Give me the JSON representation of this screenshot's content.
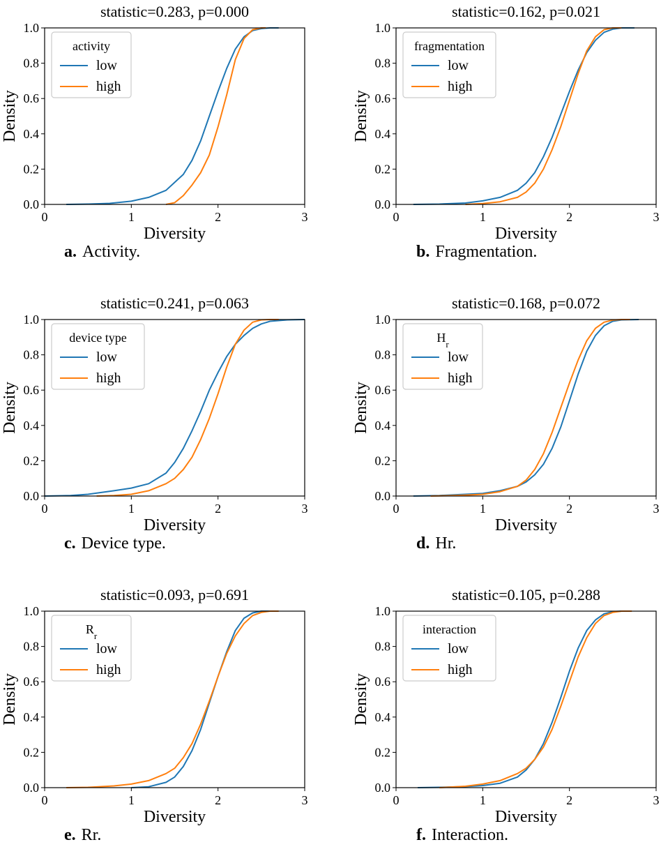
{
  "figure": {
    "colors": {
      "low": "#1f77b4",
      "high": "#ff7f0e",
      "axis": "#000000",
      "legend_border": "#cccccc"
    }
  },
  "chart_data": [
    {
      "type": "line",
      "title": "statistic=0.283, p=0.000",
      "xlabel": "Diversity",
      "ylabel": "Density",
      "xlim": [
        0,
        3
      ],
      "ylim": [
        0,
        1.0
      ],
      "xticks": [
        "0",
        "1",
        "2",
        "3"
      ],
      "yticks": [
        "0.0",
        "0.2",
        "0.4",
        "0.6",
        "0.8",
        "1.0"
      ],
      "legend": {
        "title": "activity",
        "title_sub": "",
        "placement": "upper-left"
      },
      "caption": {
        "letter": "a.",
        "text": "Activity."
      },
      "series": [
        {
          "name": "low",
          "color": "#1f77b4",
          "x": [
            0.25,
            0.5,
            0.75,
            1.0,
            1.2,
            1.4,
            1.6,
            1.7,
            1.8,
            1.9,
            2.0,
            2.1,
            2.2,
            2.3,
            2.4,
            2.5,
            2.6,
            2.7
          ],
          "y": [
            0.0,
            0.002,
            0.006,
            0.018,
            0.04,
            0.08,
            0.17,
            0.25,
            0.36,
            0.5,
            0.64,
            0.77,
            0.88,
            0.95,
            0.985,
            0.996,
            1.0,
            1.0
          ]
        },
        {
          "name": "high",
          "color": "#ff7f0e",
          "x": [
            1.4,
            1.5,
            1.6,
            1.7,
            1.8,
            1.9,
            2.0,
            2.1,
            2.2,
            2.3,
            2.4,
            2.5,
            2.55
          ],
          "y": [
            0.0,
            0.01,
            0.05,
            0.11,
            0.18,
            0.28,
            0.44,
            0.62,
            0.82,
            0.94,
            0.99,
            1.0,
            1.0
          ]
        }
      ]
    },
    {
      "type": "line",
      "title": "statistic=0.162, p=0.021",
      "xlabel": "Diversity",
      "ylabel": "Density",
      "xlim": [
        0,
        3
      ],
      "ylim": [
        0,
        1.0
      ],
      "xticks": [
        "0",
        "1",
        "2",
        "3"
      ],
      "yticks": [
        "0.0",
        "0.2",
        "0.4",
        "0.6",
        "0.8",
        "1.0"
      ],
      "legend": {
        "title": "fragmentation",
        "title_sub": "",
        "placement": "upper-left"
      },
      "caption": {
        "letter": "b.",
        "text": "Fragmentation."
      },
      "series": [
        {
          "name": "low",
          "color": "#1f77b4",
          "x": [
            0.2,
            0.5,
            0.8,
            1.0,
            1.2,
            1.4,
            1.5,
            1.6,
            1.7,
            1.8,
            1.9,
            2.0,
            2.1,
            2.2,
            2.3,
            2.4,
            2.5,
            2.6,
            2.75
          ],
          "y": [
            0.0,
            0.002,
            0.008,
            0.02,
            0.04,
            0.08,
            0.12,
            0.18,
            0.27,
            0.38,
            0.51,
            0.64,
            0.76,
            0.86,
            0.93,
            0.975,
            0.993,
            1.0,
            1.0
          ]
        },
        {
          "name": "high",
          "color": "#ff7f0e",
          "x": [
            0.8,
            1.0,
            1.2,
            1.4,
            1.5,
            1.6,
            1.7,
            1.8,
            1.9,
            2.0,
            2.1,
            2.2,
            2.3,
            2.4,
            2.5,
            2.6
          ],
          "y": [
            0.0,
            0.005,
            0.015,
            0.04,
            0.07,
            0.12,
            0.2,
            0.31,
            0.44,
            0.59,
            0.74,
            0.87,
            0.95,
            0.99,
            1.0,
            1.0
          ]
        }
      ]
    },
    {
      "type": "line",
      "title": "statistic=0.241, p=0.063",
      "xlabel": "Diversity",
      "ylabel": "Density",
      "xlim": [
        0,
        3
      ],
      "ylim": [
        0,
        1.0
      ],
      "xticks": [
        "0",
        "1",
        "2",
        "3"
      ],
      "yticks": [
        "0.0",
        "0.2",
        "0.4",
        "0.6",
        "0.8",
        "1.0"
      ],
      "legend": {
        "title": "device type",
        "title_sub": "",
        "placement": "upper-left"
      },
      "caption": {
        "letter": "c.",
        "text": "Device type."
      },
      "series": [
        {
          "name": "low",
          "color": "#1f77b4",
          "x": [
            0.0,
            0.3,
            0.5,
            0.8,
            1.0,
            1.2,
            1.4,
            1.5,
            1.6,
            1.7,
            1.8,
            1.9,
            2.0,
            2.1,
            2.2,
            2.3,
            2.4,
            2.5,
            2.6,
            2.8,
            3.0
          ],
          "y": [
            0.0,
            0.003,
            0.01,
            0.03,
            0.045,
            0.07,
            0.13,
            0.19,
            0.27,
            0.37,
            0.48,
            0.6,
            0.7,
            0.79,
            0.86,
            0.91,
            0.95,
            0.975,
            0.99,
            0.998,
            1.0
          ]
        },
        {
          "name": "high",
          "color": "#ff7f0e",
          "x": [
            0.6,
            0.8,
            1.0,
            1.2,
            1.4,
            1.5,
            1.6,
            1.7,
            1.8,
            1.9,
            2.0,
            2.1,
            2.2,
            2.3,
            2.4,
            2.5,
            2.6,
            2.7
          ],
          "y": [
            0.0,
            0.003,
            0.01,
            0.03,
            0.07,
            0.1,
            0.15,
            0.22,
            0.32,
            0.44,
            0.58,
            0.73,
            0.86,
            0.94,
            0.985,
            0.998,
            1.0,
            1.0
          ]
        }
      ]
    },
    {
      "type": "line",
      "title": "statistic=0.168, p=0.072",
      "xlabel": "Diversity",
      "ylabel": "Density",
      "xlim": [
        0,
        3
      ],
      "ylim": [
        0,
        1.0
      ],
      "xticks": [
        "0",
        "1",
        "2",
        "3"
      ],
      "yticks": [
        "0.0",
        "0.2",
        "0.4",
        "0.6",
        "0.8",
        "1.0"
      ],
      "legend": {
        "title": "H",
        "title_sub": "r",
        "placement": "upper-left"
      },
      "caption": {
        "letter": "d.",
        "text": "Hr."
      },
      "series": [
        {
          "name": "low",
          "color": "#1f77b4",
          "x": [
            0.2,
            0.5,
            0.8,
            1.0,
            1.2,
            1.4,
            1.5,
            1.6,
            1.7,
            1.8,
            1.9,
            2.0,
            2.1,
            2.2,
            2.3,
            2.4,
            2.5,
            2.6,
            2.8
          ],
          "y": [
            0.0,
            0.003,
            0.01,
            0.015,
            0.03,
            0.055,
            0.08,
            0.12,
            0.18,
            0.27,
            0.39,
            0.54,
            0.69,
            0.82,
            0.91,
            0.965,
            0.99,
            0.998,
            1.0
          ]
        },
        {
          "name": "high",
          "color": "#ff7f0e",
          "x": [
            0.4,
            0.6,
            0.8,
            1.0,
            1.2,
            1.4,
            1.5,
            1.6,
            1.7,
            1.8,
            1.9,
            2.0,
            2.1,
            2.2,
            2.3,
            2.4,
            2.5,
            2.6,
            2.7
          ],
          "y": [
            0.0,
            0.002,
            0.005,
            0.01,
            0.025,
            0.055,
            0.09,
            0.15,
            0.24,
            0.36,
            0.5,
            0.64,
            0.77,
            0.88,
            0.95,
            0.985,
            0.997,
            1.0,
            1.0
          ]
        }
      ]
    },
    {
      "type": "line",
      "title": "statistic=0.093, p=0.691",
      "xlabel": "Diversity",
      "ylabel": "Density",
      "xlim": [
        0,
        3
      ],
      "ylim": [
        0,
        1.0
      ],
      "xticks": [
        "0",
        "1",
        "2",
        "3"
      ],
      "yticks": [
        "0.0",
        "0.2",
        "0.4",
        "0.6",
        "0.8",
        "1.0"
      ],
      "legend": {
        "title": "R",
        "title_sub": "r",
        "placement": "upper-left"
      },
      "caption": {
        "letter": "e.",
        "text": "Rr."
      },
      "series": [
        {
          "name": "low",
          "color": "#1f77b4",
          "x": [
            1.0,
            1.2,
            1.4,
            1.5,
            1.6,
            1.7,
            1.8,
            1.9,
            2.0,
            2.1,
            2.2,
            2.3,
            2.4,
            2.5,
            2.6
          ],
          "y": [
            0.0,
            0.005,
            0.03,
            0.06,
            0.12,
            0.21,
            0.33,
            0.48,
            0.63,
            0.77,
            0.89,
            0.96,
            0.99,
            1.0,
            1.0
          ]
        },
        {
          "name": "high",
          "color": "#ff7f0e",
          "x": [
            0.25,
            0.5,
            0.8,
            1.0,
            1.2,
            1.4,
            1.5,
            1.6,
            1.7,
            1.8,
            1.9,
            2.0,
            2.1,
            2.2,
            2.3,
            2.4,
            2.5,
            2.6,
            2.7
          ],
          "y": [
            0.0,
            0.002,
            0.01,
            0.02,
            0.04,
            0.08,
            0.11,
            0.17,
            0.25,
            0.36,
            0.49,
            0.63,
            0.76,
            0.86,
            0.93,
            0.975,
            0.993,
            1.0,
            1.0
          ]
        }
      ]
    },
    {
      "type": "line",
      "title": "statistic=0.105, p=0.288",
      "xlabel": "Diversity",
      "ylabel": "Density",
      "xlim": [
        0,
        3
      ],
      "ylim": [
        0,
        1.0
      ],
      "xticks": [
        "0",
        "1",
        "2",
        "3"
      ],
      "yticks": [
        "0.0",
        "0.2",
        "0.4",
        "0.6",
        "0.8",
        "1.0"
      ],
      "legend": {
        "title": "interaction",
        "title_sub": "",
        "placement": "upper-left"
      },
      "caption": {
        "letter": "f.",
        "text": "Interaction."
      },
      "series": [
        {
          "name": "low",
          "color": "#1f77b4",
          "x": [
            0.25,
            0.5,
            0.8,
            1.0,
            1.2,
            1.4,
            1.5,
            1.6,
            1.7,
            1.8,
            1.9,
            2.0,
            2.1,
            2.2,
            2.3,
            2.4,
            2.5,
            2.6,
            2.7
          ],
          "y": [
            0.0,
            0.002,
            0.006,
            0.012,
            0.025,
            0.06,
            0.1,
            0.16,
            0.25,
            0.37,
            0.51,
            0.66,
            0.79,
            0.89,
            0.95,
            0.985,
            0.997,
            1.0,
            1.0
          ]
        },
        {
          "name": "high",
          "color": "#ff7f0e",
          "x": [
            0.5,
            0.8,
            1.0,
            1.2,
            1.4,
            1.5,
            1.6,
            1.7,
            1.8,
            1.9,
            2.0,
            2.1,
            2.2,
            2.3,
            2.4,
            2.5,
            2.6,
            2.72
          ],
          "y": [
            0.0,
            0.008,
            0.02,
            0.04,
            0.08,
            0.11,
            0.16,
            0.23,
            0.33,
            0.46,
            0.6,
            0.74,
            0.85,
            0.93,
            0.975,
            0.993,
            1.0,
            1.0
          ]
        }
      ]
    }
  ]
}
